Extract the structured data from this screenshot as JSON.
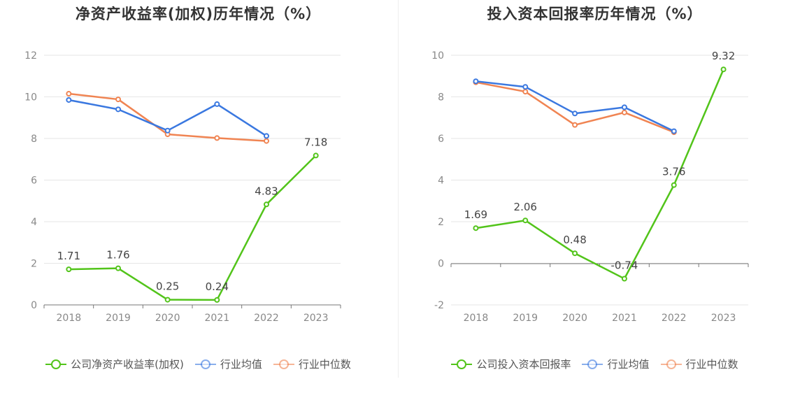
{
  "chart_data": [
    {
      "type": "line",
      "title": "净资产收益率(加权)历年情况（%）",
      "categories": [
        "2018",
        "2019",
        "2020",
        "2021",
        "2022",
        "2023"
      ],
      "yticks": [
        "0",
        "2",
        "4",
        "6",
        "8",
        "10",
        "12"
      ],
      "ylim": [
        0,
        12
      ],
      "series": [
        {
          "name": "公司净资产收益率(加权)",
          "color": "#52c41a",
          "values": [
            1.71,
            1.76,
            0.25,
            0.24,
            4.83,
            7.18
          ],
          "labels": [
            "1.71",
            "1.76",
            "0.25",
            "0.24",
            "4.83",
            "7.18"
          ]
        },
        {
          "name": "行业均值",
          "color": "#3a78e0",
          "values": [
            9.85,
            9.4,
            8.38,
            9.65,
            8.12,
            null
          ]
        },
        {
          "name": "行业中位数",
          "color": "#f08452",
          "values": [
            10.15,
            9.88,
            8.2,
            8.02,
            7.88,
            null
          ]
        }
      ],
      "grid": true,
      "legend": "bottom"
    },
    {
      "type": "line",
      "title": "投入资本回报率历年情况（%）",
      "categories": [
        "2018",
        "2019",
        "2020",
        "2021",
        "2022",
        "2023"
      ],
      "yticks": [
        "-2",
        "0",
        "2",
        "4",
        "6",
        "8",
        "10"
      ],
      "ylim": [
        -2,
        10
      ],
      "series": [
        {
          "name": "公司投入资本回报率",
          "color": "#52c41a",
          "values": [
            1.69,
            2.06,
            0.48,
            -0.74,
            3.76,
            9.32
          ],
          "labels": [
            "1.69",
            "2.06",
            "0.48",
            "-0.74",
            "3.76",
            "9.32"
          ]
        },
        {
          "name": "行业均值",
          "color": "#3a78e0",
          "values": [
            8.75,
            8.48,
            7.2,
            7.5,
            6.35,
            null
          ]
        },
        {
          "name": "行业中位数",
          "color": "#f08452",
          "values": [
            8.7,
            8.25,
            6.65,
            7.25,
            6.3,
            null
          ]
        }
      ],
      "grid": true,
      "legend": "bottom"
    }
  ]
}
